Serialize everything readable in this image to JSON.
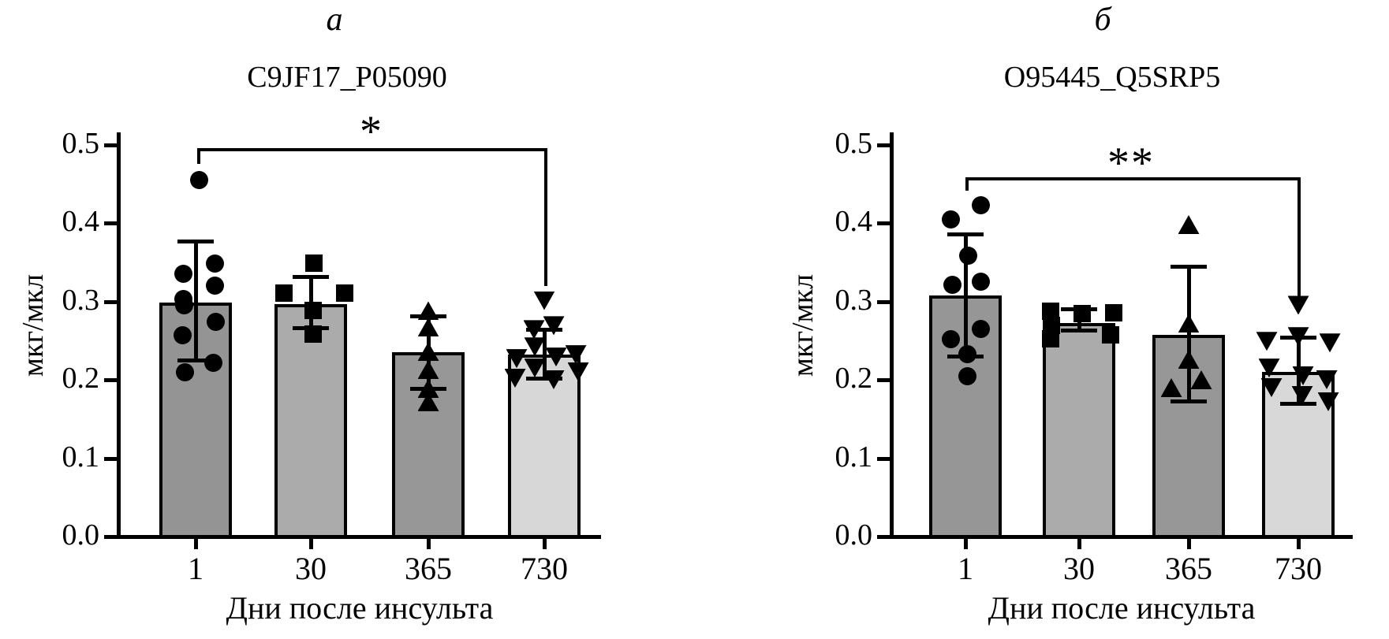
{
  "chart_data": [
    {
      "type": "bar",
      "panel_label": "а",
      "title": "C9JF17_P05090",
      "xlabel": "Дни после инсульта",
      "ylabel": "мкг/мкл",
      "ylim": [
        0.0,
        0.5
      ],
      "ytick_labels": [
        "0.0",
        "0.1",
        "0.2",
        "0.3",
        "0.4",
        "0.5"
      ],
      "categories": [
        "1",
        "30",
        "365",
        "730"
      ],
      "grid": false,
      "legend": "none",
      "significance": {
        "label": "*",
        "between": [
          "1",
          "730"
        ]
      },
      "groups": [
        {
          "category": "1",
          "marker": "circle",
          "bar_color": "#949494",
          "mean": 0.298,
          "whisker_high": 0.377,
          "whisker_low": 0.225,
          "points": [
            0.455,
            0.348,
            0.335,
            0.32,
            0.303,
            0.295,
            0.274,
            0.257,
            0.222,
            0.21
          ]
        },
        {
          "category": "30",
          "marker": "square",
          "bar_color": "#ababab",
          "mean": 0.296,
          "whisker_high": 0.332,
          "whisker_low": 0.266,
          "points": [
            0.349,
            0.311,
            0.311,
            0.288,
            0.258
          ]
        },
        {
          "category": "365",
          "marker": "triangle-up",
          "bar_color": "#979797",
          "mean": 0.235,
          "whisker_high": 0.281,
          "whisker_low": 0.189,
          "points": [
            0.288,
            0.267,
            0.236,
            0.213,
            0.189,
            0.172
          ]
        },
        {
          "category": "730",
          "marker": "triangle-down",
          "bar_color": "#d7d7d7",
          "mean": 0.232,
          "whisker_high": 0.264,
          "whisker_low": 0.202,
          "points": [
            0.301,
            0.269,
            0.264,
            0.242,
            0.232,
            0.229,
            0.227,
            0.215,
            0.21,
            0.202,
            0.2
          ]
        }
      ]
    },
    {
      "type": "bar",
      "panel_label": "б",
      "title": "O95445_Q5SRP5",
      "xlabel": "Дни после инсульта",
      "ylabel": "мкг/мкл",
      "ylim": [
        0.0,
        0.5
      ],
      "ytick_labels": [
        "0.0",
        "0.1",
        "0.2",
        "0.3",
        "0.4",
        "0.5"
      ],
      "categories": [
        "1",
        "30",
        "365",
        "730"
      ],
      "grid": false,
      "legend": "none",
      "significance": {
        "label": "**",
        "between": [
          "1",
          "730"
        ]
      },
      "groups": [
        {
          "category": "1",
          "marker": "circle",
          "bar_color": "#969696",
          "mean": 0.308,
          "whisker_high": 0.386,
          "whisker_low": 0.23,
          "points": [
            0.423,
            0.405,
            0.358,
            0.325,
            0.321,
            0.265,
            0.252,
            0.233,
            0.205
          ]
        },
        {
          "category": "30",
          "marker": "square",
          "bar_color": "#ababab",
          "mean": 0.272,
          "whisker_high": 0.29,
          "whisker_low": 0.263,
          "points": [
            0.287,
            0.285,
            0.284,
            0.269,
            0.257,
            0.252
          ]
        },
        {
          "category": "365",
          "marker": "triangle-up",
          "bar_color": "#979797",
          "mean": 0.257,
          "whisker_high": 0.345,
          "whisker_low": 0.173,
          "points": [
            0.398,
            0.272,
            0.226,
            0.2,
            0.19
          ]
        },
        {
          "category": "730",
          "marker": "triangle-down",
          "bar_color": "#d8d8d8",
          "mean": 0.21,
          "whisker_high": 0.254,
          "whisker_low": 0.17,
          "points": [
            0.295,
            0.255,
            0.249,
            0.247,
            0.215,
            0.205,
            0.2,
            0.19,
            0.18,
            0.172
          ]
        }
      ]
    }
  ]
}
